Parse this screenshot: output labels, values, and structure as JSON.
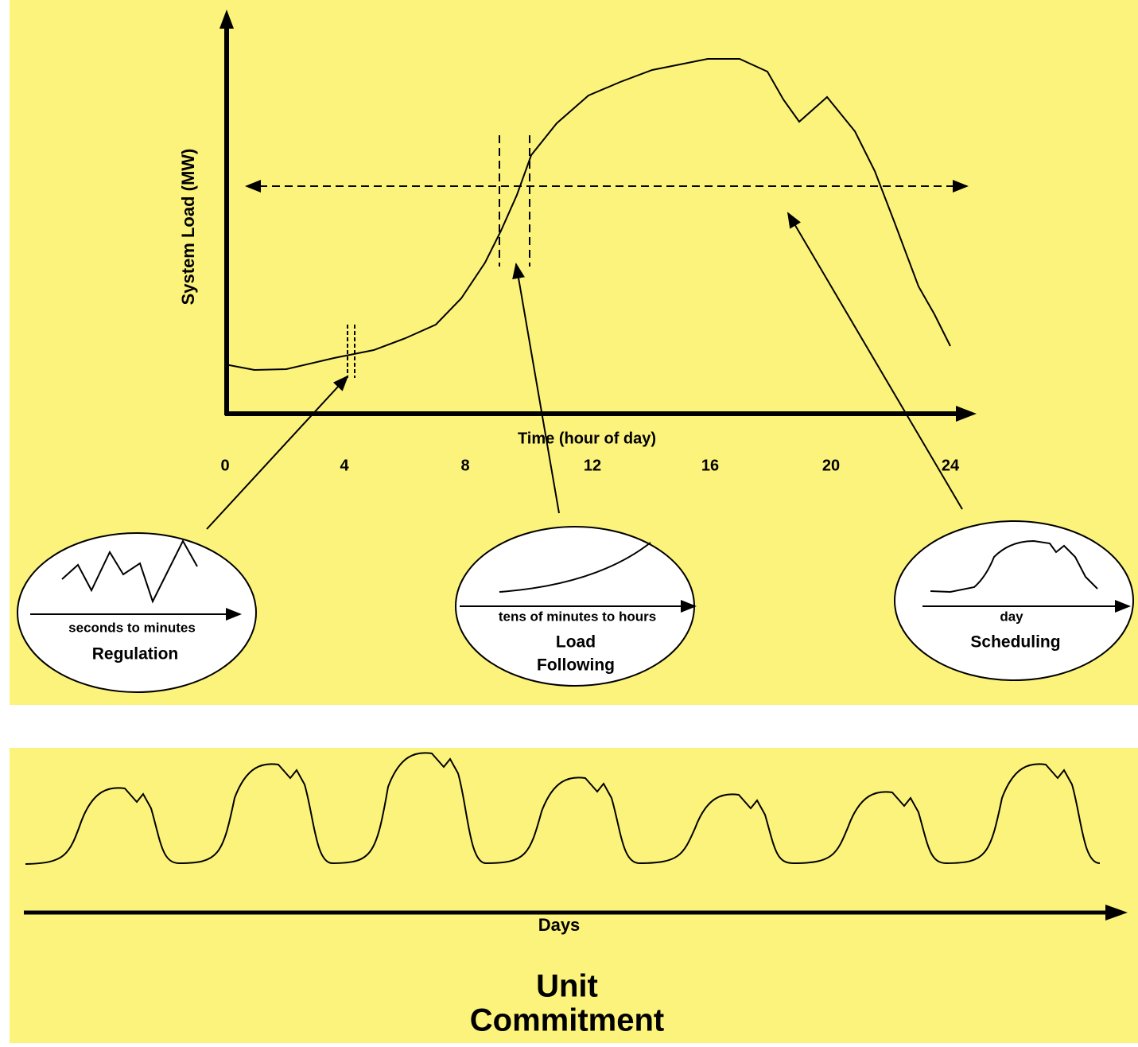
{
  "top_panel": {
    "y_axis_label": "System Load (MW)",
    "x_axis_label": "Time (hour of day)",
    "x_tick_labels": [
      "0",
      "4",
      "8",
      "12",
      "16",
      "20",
      "24"
    ],
    "insets": [
      {
        "scale": "seconds to minutes",
        "label": "Regulation"
      },
      {
        "scale": "tens of minutes to hours",
        "label_lines": [
          "Load",
          "Following"
        ]
      },
      {
        "scale": "day",
        "label": "Scheduling"
      }
    ]
  },
  "bottom_panel": {
    "axis_label": "Days",
    "title_lines": [
      "Unit",
      "Commitment"
    ]
  }
}
